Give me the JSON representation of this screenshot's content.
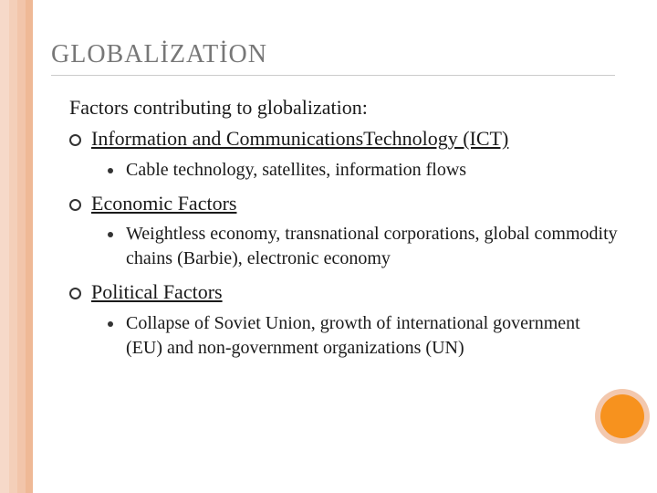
{
  "stripes": {
    "colors": [
      "#f6d9c9",
      "#f4cfb9",
      "#f2c5aa",
      "#efb996"
    ],
    "widths": [
      10,
      9,
      9,
      8
    ]
  },
  "title": "GLOBALİZATİON",
  "subtitle": "Factors contributing to globalization:",
  "items": [
    {
      "label": "Information and CommunicationsTechnology (ICT)",
      "sub": "Cable technology, satellites, information flows"
    },
    {
      "label": "Economic Factors",
      "sub": "Weightless economy, transnational corporations, global commodity chains (Barbie), electronic economy"
    },
    {
      "label": "Political Factors",
      "sub": "Collapse of Soviet Union, growth of international government (EU) and non-government organizations (UN)"
    }
  ],
  "decoration": {
    "outer_color": "#f3c8ae",
    "inner_color": "#f7921e"
  }
}
